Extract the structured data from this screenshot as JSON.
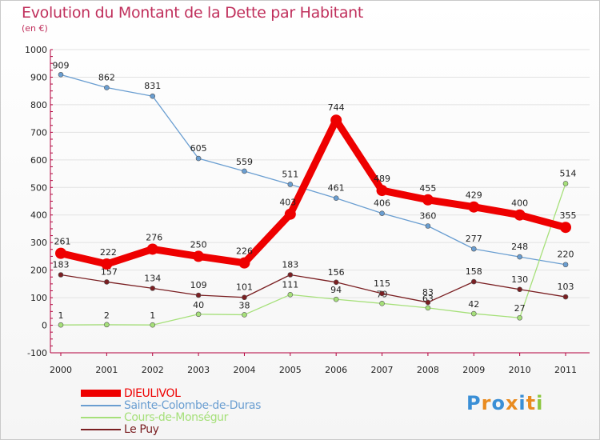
{
  "colors": {
    "title": "#c0305c",
    "axis": "#b3003c",
    "grid": "#e2e2e2"
  },
  "brand": {
    "letters": [
      "P",
      "r",
      "o",
      "x",
      "i",
      "t",
      "i"
    ],
    "colors": [
      "#3a8fd6",
      "#e98b1f",
      "#3a8fd6",
      "#e98b1f",
      "#3a8fd6",
      "#e98b1f",
      "#8cc63f"
    ]
  },
  "chart_data": {
    "type": "line",
    "title": "Evolution du Montant de la Dette par Habitant",
    "subtitle": "(en €)",
    "xlabel": "",
    "ylabel": "",
    "x": [
      "2000",
      "2001",
      "2002",
      "2003",
      "2004",
      "2005",
      "2006",
      "2007",
      "2008",
      "2009",
      "2010",
      "2011"
    ],
    "ylim": [
      -100,
      1000
    ],
    "yticks": [
      -100,
      0,
      100,
      200,
      300,
      400,
      500,
      600,
      700,
      800,
      900,
      1000
    ],
    "grid": true,
    "legend_position": "bottom-left",
    "series": [
      {
        "name": "DIEULIVOL",
        "color": "#ee0000",
        "label_color": "#222222",
        "width": 9,
        "marker": 7,
        "values": [
          261,
          222,
          276,
          250,
          226,
          403,
          744,
          489,
          455,
          429,
          400,
          355
        ],
        "labels": [
          "261",
          "222",
          "276",
          "250",
          "226",
          "403",
          "744",
          "489",
          "455",
          "429",
          "400",
          "355"
        ]
      },
      {
        "name": "Sainte-Colombe-de-Duras",
        "color": "#6a9ed1",
        "label_color": "#222222",
        "width": 1.3,
        "marker": 3,
        "values": [
          909,
          862,
          831,
          605,
          559,
          511,
          461,
          406,
          360,
          277,
          248,
          220
        ],
        "labels": [
          "909",
          "862",
          "831",
          "605",
          "559",
          "511",
          "461",
          "406",
          "360",
          "277",
          "248",
          "220"
        ]
      },
      {
        "name": "Cours-de-Monségur",
        "color": "#a6e07a",
        "label_color": "#222222",
        "width": 1.3,
        "marker": 3,
        "values": [
          1,
          2,
          1,
          40,
          38,
          111,
          94,
          79,
          63,
          42,
          27,
          514
        ],
        "labels": [
          "1",
          "2",
          "1",
          "40",
          "38",
          "111",
          "94",
          "79",
          "63",
          "42",
          "27",
          "514"
        ]
      },
      {
        "name": "Le Puy",
        "color": "#7a1f22",
        "label_color": "#222222",
        "width": 1.3,
        "marker": 3,
        "values": [
          183,
          157,
          134,
          109,
          101,
          183,
          156,
          115,
          83,
          158,
          130,
          103
        ],
        "labels": [
          "183",
          "157",
          "134",
          "109",
          "101",
          "183",
          "156",
          "115",
          "83",
          "158",
          "130",
          "103"
        ]
      }
    ]
  }
}
